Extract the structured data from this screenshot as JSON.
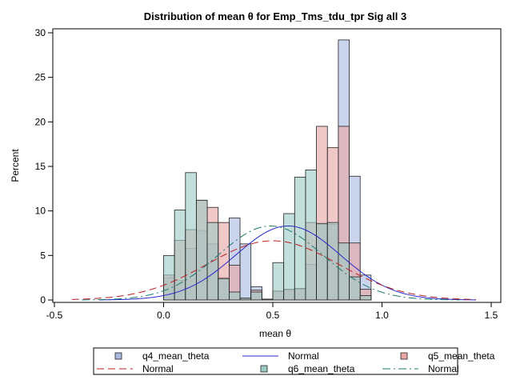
{
  "chart_data": {
    "type": "bar",
    "title": "Distribution of mean θ for Emp_Tms_tdu_tpr Sig all 3",
    "xlabel": "mean θ",
    "ylabel": "Percent",
    "xlim": [
      -0.5,
      1.5
    ],
    "ylim": [
      0,
      30
    ],
    "x_ticks": [
      "-0.5",
      "0.0",
      "0.5",
      "1.0",
      "1.5"
    ],
    "y_ticks": [
      "0",
      "5",
      "10",
      "15",
      "20",
      "25",
      "30"
    ],
    "grid": false,
    "legend_position": "bottom",
    "bin_width": 0.05,
    "bin_centers": [
      0.025,
      0.075,
      0.125,
      0.175,
      0.225,
      0.275,
      0.325,
      0.375,
      0.425,
      0.475,
      0.525,
      0.575,
      0.625,
      0.675,
      0.725,
      0.775,
      0.825,
      0.875,
      0.925
    ],
    "series": [
      {
        "name": "q4_mean_theta",
        "kind": "histogram",
        "color": "#a9b9e0",
        "stroke": "#222222",
        "values": [
          2.5,
          2.2,
          5.8,
          7.8,
          6.3,
          2.5,
          9.2,
          6.3,
          1.5,
          0.1,
          1.0,
          1.1,
          1.2,
          4.0,
          8.5,
          8.5,
          29.2,
          13.9,
          2.8
        ]
      },
      {
        "name": "Normal",
        "kind": "normal",
        "color": "#2a2acc",
        "dash": "",
        "mean": 0.57,
        "sd": 0.24,
        "values": []
      },
      {
        "name": "q5_mean_theta",
        "kind": "histogram",
        "color": "#e9a7a7",
        "stroke": "#222222",
        "values": [
          2.8,
          6.7,
          7.9,
          11.2,
          10.4,
          8.7,
          3.9,
          0.2,
          1.1,
          0.1,
          1.0,
          1.2,
          1.3,
          8.7,
          19.5,
          17.1,
          19.5,
          6.4,
          1.2
        ]
      },
      {
        "name": "Normal",
        "kind": "normal",
        "color": "#bb2222",
        "dash": "9,5",
        "mean": 0.5,
        "sd": 0.3,
        "values": []
      },
      {
        "name": "q6_mean_theta",
        "kind": "histogram",
        "color": "#9ccbc5",
        "stroke": "#222222",
        "values": [
          5.0,
          10.1,
          14.3,
          11.2,
          8.7,
          2.4,
          0.9,
          0.2,
          0.9,
          0.1,
          4.2,
          9.7,
          13.8,
          14.6,
          8.6,
          8.7,
          6.4,
          2.6,
          0.5
        ]
      },
      {
        "name": "Normal",
        "kind": "normal",
        "color": "#1e7a70",
        "dash": "10,4,2,4",
        "mean": 0.49,
        "sd": 0.24,
        "values": []
      }
    ]
  },
  "colors": {
    "q4_fill": "#a9b9e0",
    "q5_fill": "#e9a7a7",
    "q6_fill": "#9ccbc5",
    "axis": "#000000",
    "frame": "#000000"
  }
}
